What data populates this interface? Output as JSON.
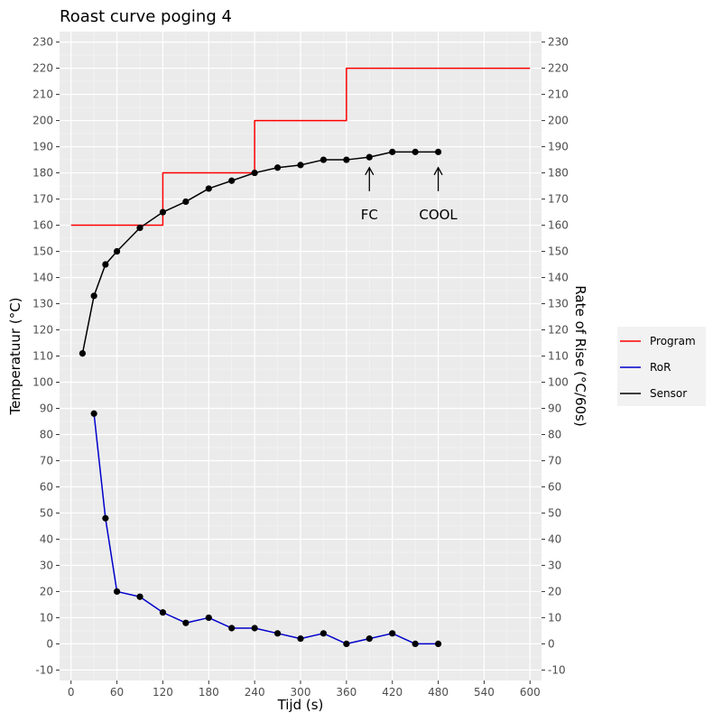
{
  "chart_data": {
    "type": "line",
    "title": "Roast curve poging 4",
    "xlabel": "Tijd (s)",
    "ylabel": "Temperatuur (°C)",
    "y2label": "Rate of Rise (°C/60s)",
    "xlim": [
      -15,
      615
    ],
    "ylim": [
      -14,
      234
    ],
    "xticks": [
      0,
      60,
      120,
      180,
      240,
      300,
      360,
      420,
      480,
      540,
      600
    ],
    "yticks": [
      -10,
      0,
      10,
      20,
      30,
      40,
      50,
      60,
      70,
      80,
      90,
      100,
      110,
      120,
      130,
      140,
      150,
      160,
      170,
      180,
      190,
      200,
      210,
      220,
      230
    ],
    "grid": true,
    "legend_position": "right",
    "series": [
      {
        "name": "Program",
        "color": "#ff0000",
        "style": "step",
        "markers": false,
        "x": [
          0,
          120,
          120,
          240,
          240,
          360,
          360,
          600
        ],
        "y": [
          160,
          160,
          180,
          180,
          200,
          200,
          220,
          220
        ]
      },
      {
        "name": "RoR",
        "color": "#0000cc",
        "style": "line",
        "markers": true,
        "x": [
          30,
          45,
          60,
          90,
          120,
          150,
          180,
          210,
          240,
          270,
          300,
          330,
          360,
          390,
          420,
          450,
          480
        ],
        "y": [
          88,
          48,
          20,
          18,
          12,
          8,
          10,
          6,
          6,
          4,
          2,
          4,
          0,
          2,
          4,
          0,
          0
        ]
      },
      {
        "name": "Sensor",
        "color": "#000000",
        "style": "line",
        "markers": true,
        "x": [
          15,
          30,
          45,
          60,
          90,
          120,
          150,
          180,
          210,
          240,
          270,
          300,
          330,
          360,
          390,
          420,
          450,
          480
        ],
        "y": [
          111,
          133,
          145,
          150,
          159,
          165,
          169,
          174,
          177,
          180,
          182,
          183,
          185,
          185,
          186,
          188,
          188,
          188
        ]
      }
    ],
    "annotations": [
      {
        "label": "FC",
        "x": 390,
        "y_arrow_top": 182,
        "y_arrow_bottom": 173,
        "y_text": 164
      },
      {
        "label": "COOL",
        "x": 480,
        "y_arrow_top": 182,
        "y_arrow_bottom": 173,
        "y_text": 164
      }
    ]
  }
}
